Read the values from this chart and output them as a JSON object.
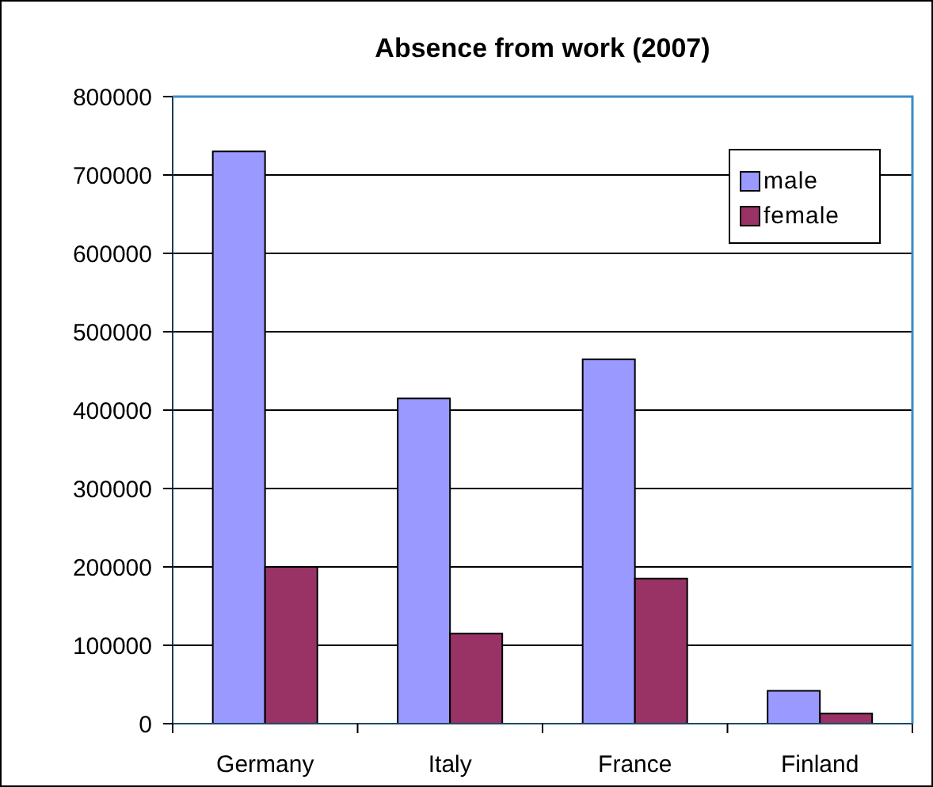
{
  "chart_data": {
    "type": "bar",
    "title": "Absence from work (2007)",
    "categories": [
      "Germany",
      "Italy",
      "France",
      "Finland"
    ],
    "series": [
      {
        "name": "male",
        "color": "#9999ff",
        "values": [
          730000,
          415000,
          465000,
          42000
        ]
      },
      {
        "name": "female",
        "color": "#993366",
        "values": [
          200000,
          115000,
          185000,
          13000
        ]
      }
    ],
    "ylim": [
      0,
      800000
    ],
    "yticks": [
      0,
      100000,
      200000,
      300000,
      400000,
      500000,
      600000,
      700000,
      800000
    ],
    "grid": "y",
    "legend": "top right"
  }
}
